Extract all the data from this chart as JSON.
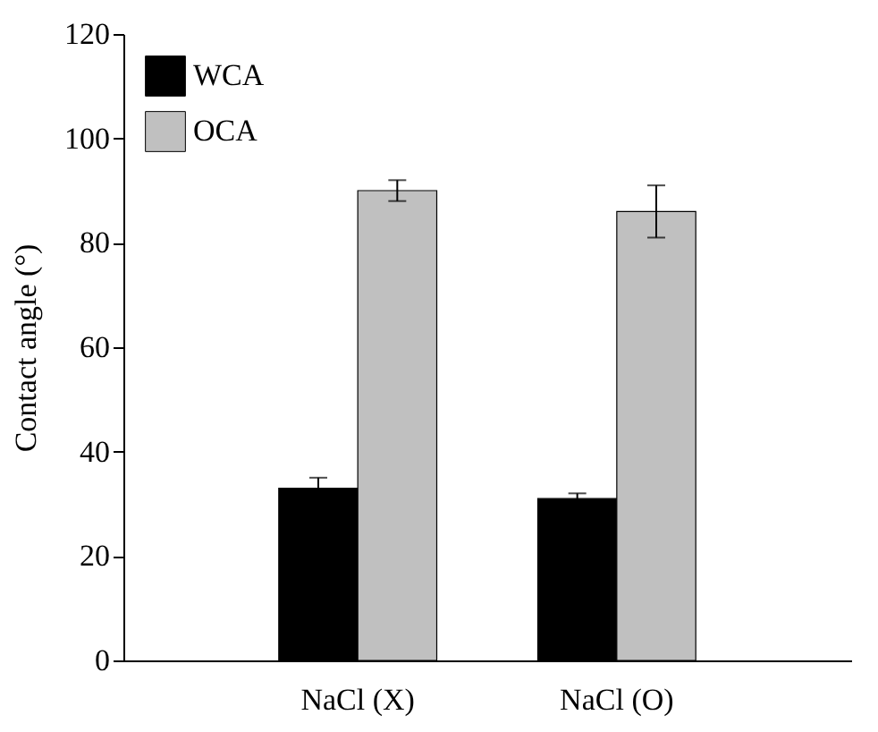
{
  "chart_data": {
    "type": "bar",
    "ylabel": "Contact angle (°)",
    "categories": [
      "NaCl (X)",
      "NaCl (O)"
    ],
    "series": [
      {
        "name": "WCA",
        "color": "#000000",
        "values": [
          33,
          31
        ],
        "errors": [
          2,
          1
        ]
      },
      {
        "name": "OCA",
        "color": "#c0c0c0",
        "values": [
          90,
          86
        ],
        "errors": [
          2,
          5
        ]
      }
    ],
    "ylim": [
      0,
      120
    ],
    "yticks": [
      0,
      20,
      40,
      60,
      80,
      100,
      120
    ],
    "grid": false,
    "legend": "top left"
  }
}
